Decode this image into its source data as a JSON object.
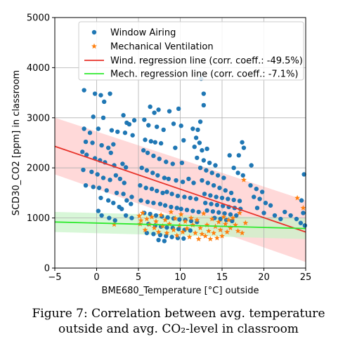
{
  "chart_data": {
    "type": "scatter",
    "xlabel": "BME680_Temperature [°C] outside",
    "ylabel": "SCD30_CO2 [ppm] in classroom",
    "xlim": [
      -5,
      25
    ],
    "ylim": [
      0,
      5000
    ],
    "xticks": [
      "−5",
      "0",
      "5",
      "10",
      "15",
      "20",
      "25"
    ],
    "xtick_values": [
      -5,
      0,
      5,
      10,
      15,
      20,
      25
    ],
    "yticks": [
      "0",
      "1000",
      "2000",
      "3000",
      "4000",
      "5000"
    ],
    "ytick_values": [
      0,
      1000,
      2000,
      3000,
      4000,
      5000
    ],
    "grid": true,
    "legend_position": "top-center",
    "series": [
      {
        "name": "Window Airing",
        "kind": "points",
        "marker": "circle",
        "color": "#1f77b4",
        "points": [
          [
            -1.5,
            3550
          ],
          [
            -0.2,
            3480
          ],
          [
            0.5,
            3450
          ],
          [
            0.9,
            3320
          ],
          [
            1.6,
            3480
          ],
          [
            -0.4,
            3020
          ],
          [
            0.8,
            3000
          ],
          [
            -1.5,
            2780
          ],
          [
            -0.8,
            2700
          ],
          [
            0.2,
            2780
          ],
          [
            1.8,
            2750
          ],
          [
            2.5,
            2720
          ],
          [
            3.4,
            2700
          ],
          [
            4.3,
            2650
          ],
          [
            3.2,
            3050
          ],
          [
            3.6,
            2900
          ],
          [
            4.5,
            2950
          ],
          [
            3.9,
            2870
          ],
          [
            -1.3,
            2520
          ],
          [
            -0.5,
            2500
          ],
          [
            0.6,
            2450
          ],
          [
            1.4,
            2400
          ],
          [
            2.0,
            2470
          ],
          [
            1.7,
            2300
          ],
          [
            -1.7,
            2320
          ],
          [
            -1.2,
            2260
          ],
          [
            -0.2,
            2190
          ],
          [
            0.4,
            2150
          ],
          [
            1.0,
            2110
          ],
          [
            2.1,
            2050
          ],
          [
            3.1,
            2080
          ],
          [
            3.5,
            2010
          ],
          [
            -1.6,
            1960
          ],
          [
            -0.6,
            1920
          ],
          [
            0.1,
            1870
          ],
          [
            0.8,
            1800
          ],
          [
            1.6,
            1760
          ],
          [
            2.3,
            1850
          ],
          [
            2.8,
            1780
          ],
          [
            3.3,
            1700
          ],
          [
            -1.3,
            1650
          ],
          [
            -0.4,
            1620
          ],
          [
            0.3,
            1600
          ],
          [
            1.2,
            1550
          ],
          [
            2.4,
            1500
          ],
          [
            3.2,
            1480
          ],
          [
            4.2,
            1420
          ],
          [
            0.5,
            1400
          ],
          [
            1.4,
            1350
          ],
          [
            2.0,
            1300
          ],
          [
            2.7,
            1220
          ],
          [
            3.0,
            1180
          ],
          [
            3.6,
            1350
          ],
          [
            4.1,
            1280
          ],
          [
            0.2,
            1140
          ],
          [
            0.6,
            1050
          ],
          [
            1.5,
            1000
          ],
          [
            2.2,
            950
          ],
          [
            3.5,
            1050
          ],
          [
            4.2,
            1000
          ],
          [
            6.4,
            3220
          ],
          [
            6.9,
            3100
          ],
          [
            7.4,
            3160
          ],
          [
            8.7,
            3130
          ],
          [
            9.8,
            3180
          ],
          [
            5.7,
            2960
          ],
          [
            6.2,
            2850
          ],
          [
            7.2,
            2820
          ],
          [
            8.0,
            2760
          ],
          [
            9.2,
            2880
          ],
          [
            10.1,
            2840
          ],
          [
            5.8,
            2560
          ],
          [
            6.5,
            2530
          ],
          [
            7.0,
            2510
          ],
          [
            7.7,
            2490
          ],
          [
            9.4,
            2400
          ],
          [
            10.4,
            2550
          ],
          [
            5.6,
            2350
          ],
          [
            6.1,
            2300
          ],
          [
            6.8,
            2240
          ],
          [
            7.5,
            2180
          ],
          [
            8.3,
            2120
          ],
          [
            9.1,
            2080
          ],
          [
            10.2,
            2100
          ],
          [
            5.4,
            2000
          ],
          [
            6.0,
            1950
          ],
          [
            6.7,
            1900
          ],
          [
            7.3,
            1850
          ],
          [
            8.1,
            1800
          ],
          [
            8.6,
            1780
          ],
          [
            9.5,
            1750
          ],
          [
            10.3,
            1720
          ],
          [
            11.0,
            1780
          ],
          [
            11.6,
            1700
          ],
          [
            5.2,
            1650
          ],
          [
            5.9,
            1600
          ],
          [
            6.6,
            1580
          ],
          [
            7.2,
            1540
          ],
          [
            7.9,
            1500
          ],
          [
            8.4,
            1520
          ],
          [
            9.0,
            1480
          ],
          [
            9.7,
            1440
          ],
          [
            10.5,
            1420
          ],
          [
            11.2,
            1400
          ],
          [
            11.9,
            1380
          ],
          [
            5.3,
            1350
          ],
          [
            6.1,
            1320
          ],
          [
            6.8,
            1300
          ],
          [
            7.6,
            1280
          ],
          [
            8.2,
            1250
          ],
          [
            8.9,
            1220
          ],
          [
            9.6,
            1200
          ],
          [
            10.1,
            1180
          ],
          [
            10.8,
            1160
          ],
          [
            11.5,
            1140
          ],
          [
            12.2,
            1120
          ],
          [
            5.7,
            1100
          ],
          [
            6.4,
            1080
          ],
          [
            7.1,
            1050
          ],
          [
            7.8,
            1030
          ],
          [
            8.5,
            1010
          ],
          [
            9.2,
            990
          ],
          [
            9.9,
            970
          ],
          [
            10.6,
            960
          ],
          [
            11.3,
            940
          ],
          [
            12.0,
            920
          ],
          [
            6.2,
            880
          ],
          [
            7.0,
            850
          ],
          [
            7.7,
            830
          ],
          [
            8.4,
            810
          ],
          [
            9.1,
            800
          ],
          [
            9.8,
            780
          ],
          [
            10.5,
            760
          ],
          [
            11.2,
            750
          ],
          [
            6.0,
            700
          ],
          [
            6.8,
            680
          ],
          [
            7.6,
            660
          ],
          [
            8.3,
            640
          ],
          [
            9.0,
            620
          ],
          [
            9.7,
            600
          ],
          [
            10.4,
            590
          ],
          [
            7.4,
            560
          ],
          [
            8.1,
            540
          ],
          [
            12.5,
            3780
          ],
          [
            12.8,
            3480
          ],
          [
            12.8,
            3250
          ],
          [
            12.4,
            2920
          ],
          [
            12.1,
            2760
          ],
          [
            11.5,
            2780
          ],
          [
            11.9,
            2600
          ],
          [
            12.3,
            2500
          ],
          [
            11.7,
            2420
          ],
          [
            12.6,
            2350
          ],
          [
            13.2,
            2380
          ],
          [
            12.0,
            2200
          ],
          [
            12.8,
            2150
          ],
          [
            13.5,
            2100
          ],
          [
            14.2,
            2050
          ],
          [
            12.4,
            2000
          ],
          [
            13.1,
            1950
          ],
          [
            13.8,
            1900
          ],
          [
            14.5,
            1850
          ],
          [
            15.2,
            1800
          ],
          [
            12.6,
            1750
          ],
          [
            13.3,
            1700
          ],
          [
            14.0,
            1650
          ],
          [
            14.7,
            1600
          ],
          [
            15.4,
            1550
          ],
          [
            16.1,
            1500
          ],
          [
            12.9,
            1480
          ],
          [
            13.6,
            1450
          ],
          [
            14.3,
            1420
          ],
          [
            15.0,
            1400
          ],
          [
            15.7,
            1380
          ],
          [
            16.4,
            1360
          ],
          [
            17.1,
            1340
          ],
          [
            13.0,
            1300
          ],
          [
            13.7,
            1280
          ],
          [
            14.4,
            1260
          ],
          [
            15.1,
            1240
          ],
          [
            15.8,
            1220
          ],
          [
            16.5,
            1200
          ],
          [
            17.2,
            1180
          ],
          [
            13.2,
            1150
          ],
          [
            13.9,
            1130
          ],
          [
            14.6,
            1110
          ],
          [
            15.3,
            1090
          ],
          [
            16.0,
            1070
          ],
          [
            16.7,
            1050
          ],
          [
            14.1,
            1000
          ],
          [
            14.8,
            980
          ],
          [
            15.5,
            960
          ],
          [
            16.2,
            940
          ],
          [
            15.9,
            2250
          ],
          [
            17.0,
            2250
          ],
          [
            17.4,
            2510
          ],
          [
            17.6,
            2400
          ],
          [
            16.4,
            2000
          ],
          [
            16.9,
            1900
          ],
          [
            17.5,
            1850
          ],
          [
            18.5,
            2050
          ],
          [
            18.4,
            1650
          ],
          [
            19.1,
            1580
          ],
          [
            19.8,
            1520
          ],
          [
            18.8,
            1420
          ],
          [
            19.5,
            1380
          ],
          [
            20.2,
            1300
          ],
          [
            20.8,
            1250
          ],
          [
            19.2,
            1200
          ],
          [
            20.0,
            1100
          ],
          [
            21.3,
            1050
          ],
          [
            22.0,
            980
          ],
          [
            22.5,
            1120
          ],
          [
            23.2,
            1050
          ],
          [
            23.9,
            980
          ],
          [
            24.4,
            900
          ],
          [
            24.8,
            1870
          ],
          [
            24.5,
            1350
          ],
          [
            24.7,
            1100
          ],
          [
            24.9,
            850
          ]
        ]
      },
      {
        "name": "Mechanical Ventilation",
        "kind": "points",
        "marker": "star",
        "color": "#ff7f0e",
        "points": [
          [
            2.1,
            870
          ],
          [
            5.1,
            1040
          ],
          [
            5.3,
            950
          ],
          [
            5.5,
            1100
          ],
          [
            5.2,
            880
          ],
          [
            5.8,
            760
          ],
          [
            6.0,
            980
          ],
          [
            6.3,
            870
          ],
          [
            6.6,
            1020
          ],
          [
            6.9,
            800
          ],
          [
            7.1,
            930
          ],
          [
            7.4,
            720
          ],
          [
            7.7,
            1060
          ],
          [
            7.9,
            840
          ],
          [
            8.2,
            960
          ],
          [
            8.4,
            700
          ],
          [
            8.7,
            880
          ],
          [
            8.9,
            1120
          ],
          [
            9.2,
            760
          ],
          [
            9.4,
            990
          ],
          [
            9.6,
            650
          ],
          [
            9.9,
            850
          ],
          [
            10.1,
            1070
          ],
          [
            10.3,
            720
          ],
          [
            10.6,
            930
          ],
          [
            10.8,
            790
          ],
          [
            11.1,
            620
          ],
          [
            11.3,
            1000
          ],
          [
            11.5,
            860
          ],
          [
            11.8,
            700
          ],
          [
            12.0,
            960
          ],
          [
            12.2,
            580
          ],
          [
            12.4,
            800
          ],
          [
            12.6,
            680
          ],
          [
            12.8,
            1090
          ],
          [
            13.0,
            640
          ],
          [
            13.2,
            860
          ],
          [
            13.4,
            740
          ],
          [
            13.6,
            580
          ],
          [
            13.8,
            980
          ],
          [
            14.0,
            700
          ],
          [
            14.2,
            830
          ],
          [
            14.4,
            600
          ],
          [
            14.6,
            920
          ],
          [
            14.8,
            760
          ],
          [
            15.0,
            640
          ],
          [
            15.2,
            1020
          ],
          [
            15.4,
            880
          ],
          [
            15.6,
            720
          ],
          [
            15.8,
            960
          ],
          [
            16.0,
            800
          ],
          [
            16.3,
            1000
          ],
          [
            16.6,
            860
          ],
          [
            16.9,
            740
          ],
          [
            17.1,
            1100
          ],
          [
            17.4,
            700
          ],
          [
            17.6,
            1760
          ],
          [
            17.8,
            900
          ],
          [
            24.0,
            1400
          ],
          [
            24.7,
            1200
          ]
        ]
      },
      {
        "name": "Wind. regression line (corr. coeff.: -49.5%)",
        "kind": "line",
        "color": "#e8332a",
        "points": [
          [
            -5,
            2430
          ],
          [
            25,
            720
          ]
        ],
        "band_upper": [
          [
            -5,
            3000
          ],
          [
            25,
            1350
          ]
        ],
        "band_lower": [
          [
            -5,
            1870
          ],
          [
            25,
            120
          ]
        ],
        "band_color": "#ffc9c9"
      },
      {
        "name": "Mech. regression line (corr. coeff.: -7.1%)",
        "kind": "line",
        "color": "#2eea2e",
        "points": [
          [
            -5,
            920
          ],
          [
            25,
            790
          ]
        ],
        "band_upper": [
          [
            -5,
            1120
          ],
          [
            25,
            1000
          ]
        ],
        "band_lower": [
          [
            -5,
            720
          ],
          [
            25,
            580
          ]
        ],
        "band_color": "#c8f4c8"
      }
    ]
  },
  "caption": {
    "line1": "Figure 7: Correlation between avg. temperature",
    "line2": "outside and avg. CO₂-level in classroom"
  }
}
